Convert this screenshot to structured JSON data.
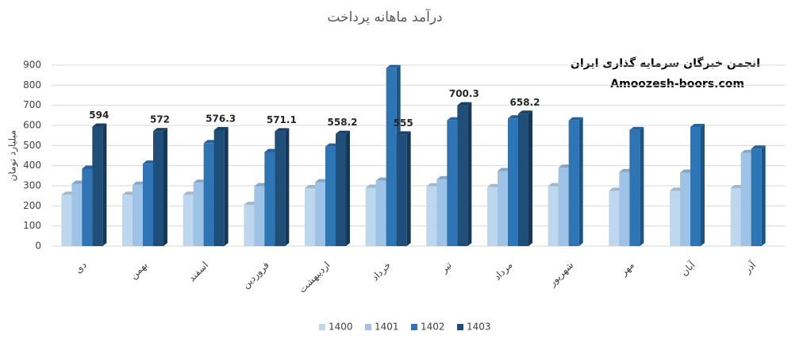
{
  "chart_data": {
    "type": "bar",
    "title": "درآمد ماهانه پرداخت",
    "y_label": "میلیارد تومان",
    "annotations": [
      "انجمن خبرگان سرمایه گذاری ایران",
      "Amoozesh-boors.com"
    ],
    "categories": [
      "دی",
      "بهمن",
      "اسفند",
      "فروردین",
      "اردیبهشت",
      "خرداد",
      "تیر",
      "مرداد",
      "شهریور",
      "مهر",
      "آبان",
      "آذر"
    ],
    "series": [
      {
        "name": "1400",
        "color": "#bdd7ee",
        "values": [
          255,
          255,
          255,
          205,
          288,
          290,
          297,
          293,
          298,
          275,
          275,
          288
        ]
      },
      {
        "name": "1401",
        "color": "#9dc3e6",
        "values": [
          310,
          305,
          315,
          298,
          318,
          325,
          332,
          373,
          390,
          368,
          365,
          463
        ]
      },
      {
        "name": "1402",
        "color": "#2e75b6",
        "values": [
          385,
          410,
          512,
          468,
          495,
          885,
          625,
          635,
          625,
          577,
          592,
          485
        ]
      },
      {
        "name": "1403",
        "color": "#1f4e79",
        "values": [
          594,
          572,
          576.3,
          571.1,
          558.2,
          555,
          700.3,
          658.2,
          null,
          null,
          null,
          null
        ],
        "show_labels": true
      }
    ],
    "ylim": [
      0,
      900
    ],
    "yticks": [
      0,
      100,
      200,
      300,
      400,
      500,
      600,
      700,
      800,
      900
    ],
    "grid": true,
    "legend": "bottom"
  }
}
